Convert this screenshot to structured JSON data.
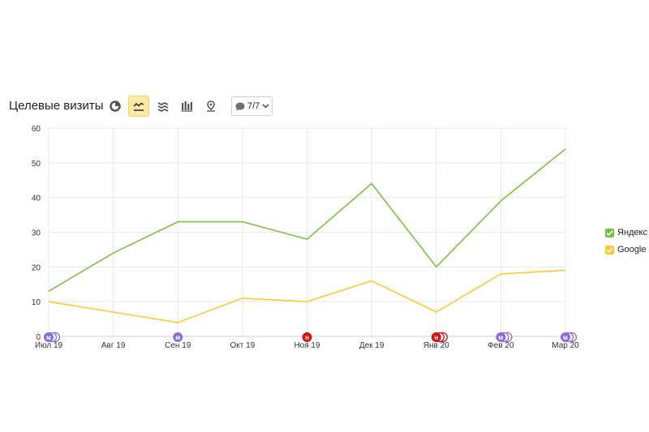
{
  "header": {
    "title": "Целевые визиты",
    "notes_count": "7/7"
  },
  "toolbar": {
    "icons": [
      "pie-chart-icon",
      "line-chart-icon",
      "stacked-area-icon",
      "bar-chart-icon",
      "map-pin-icon",
      "comment-icon",
      "chevron-down-icon"
    ],
    "active": "line-chart-icon",
    "active_bg": "#ffe9a5"
  },
  "chart_data": {
    "type": "line",
    "categories": [
      "Июл 19",
      "Авг 19",
      "Сен 19",
      "Окт 19",
      "Ноя 19",
      "Дек 19",
      "Янв 20",
      "Фев 20",
      "Мар 20"
    ],
    "series": [
      {
        "name": "Яндекс",
        "color": "#7cc242",
        "values": [
          13,
          24,
          33,
          33,
          28,
          44,
          20,
          39,
          54
        ]
      },
      {
        "name": "Google",
        "color": "#fcc934",
        "values": [
          10,
          7,
          4,
          11,
          10,
          16,
          7,
          18,
          19
        ]
      }
    ],
    "ylim": [
      0,
      60
    ],
    "yticks": [
      0,
      10,
      20,
      30,
      40,
      50,
      60
    ],
    "grid": true,
    "legend": "right",
    "annotations": [
      {
        "category_index": 0,
        "letter": "м",
        "count": 3,
        "color": "#8b6dd8"
      },
      {
        "category_index": 2,
        "letter": "м",
        "count": 1,
        "color": "#8b6dd8"
      },
      {
        "category_index": 4,
        "letter": "н",
        "count": 1,
        "color": "#d31414"
      },
      {
        "category_index": 6,
        "letter": "н",
        "count": 3,
        "color": "#d31414"
      },
      {
        "category_index": 7,
        "letter": "м",
        "count": 3,
        "color": "#8b6dd8"
      },
      {
        "category_index": 8,
        "letter": "м",
        "count": 3,
        "color": "#8b6dd8"
      }
    ]
  }
}
